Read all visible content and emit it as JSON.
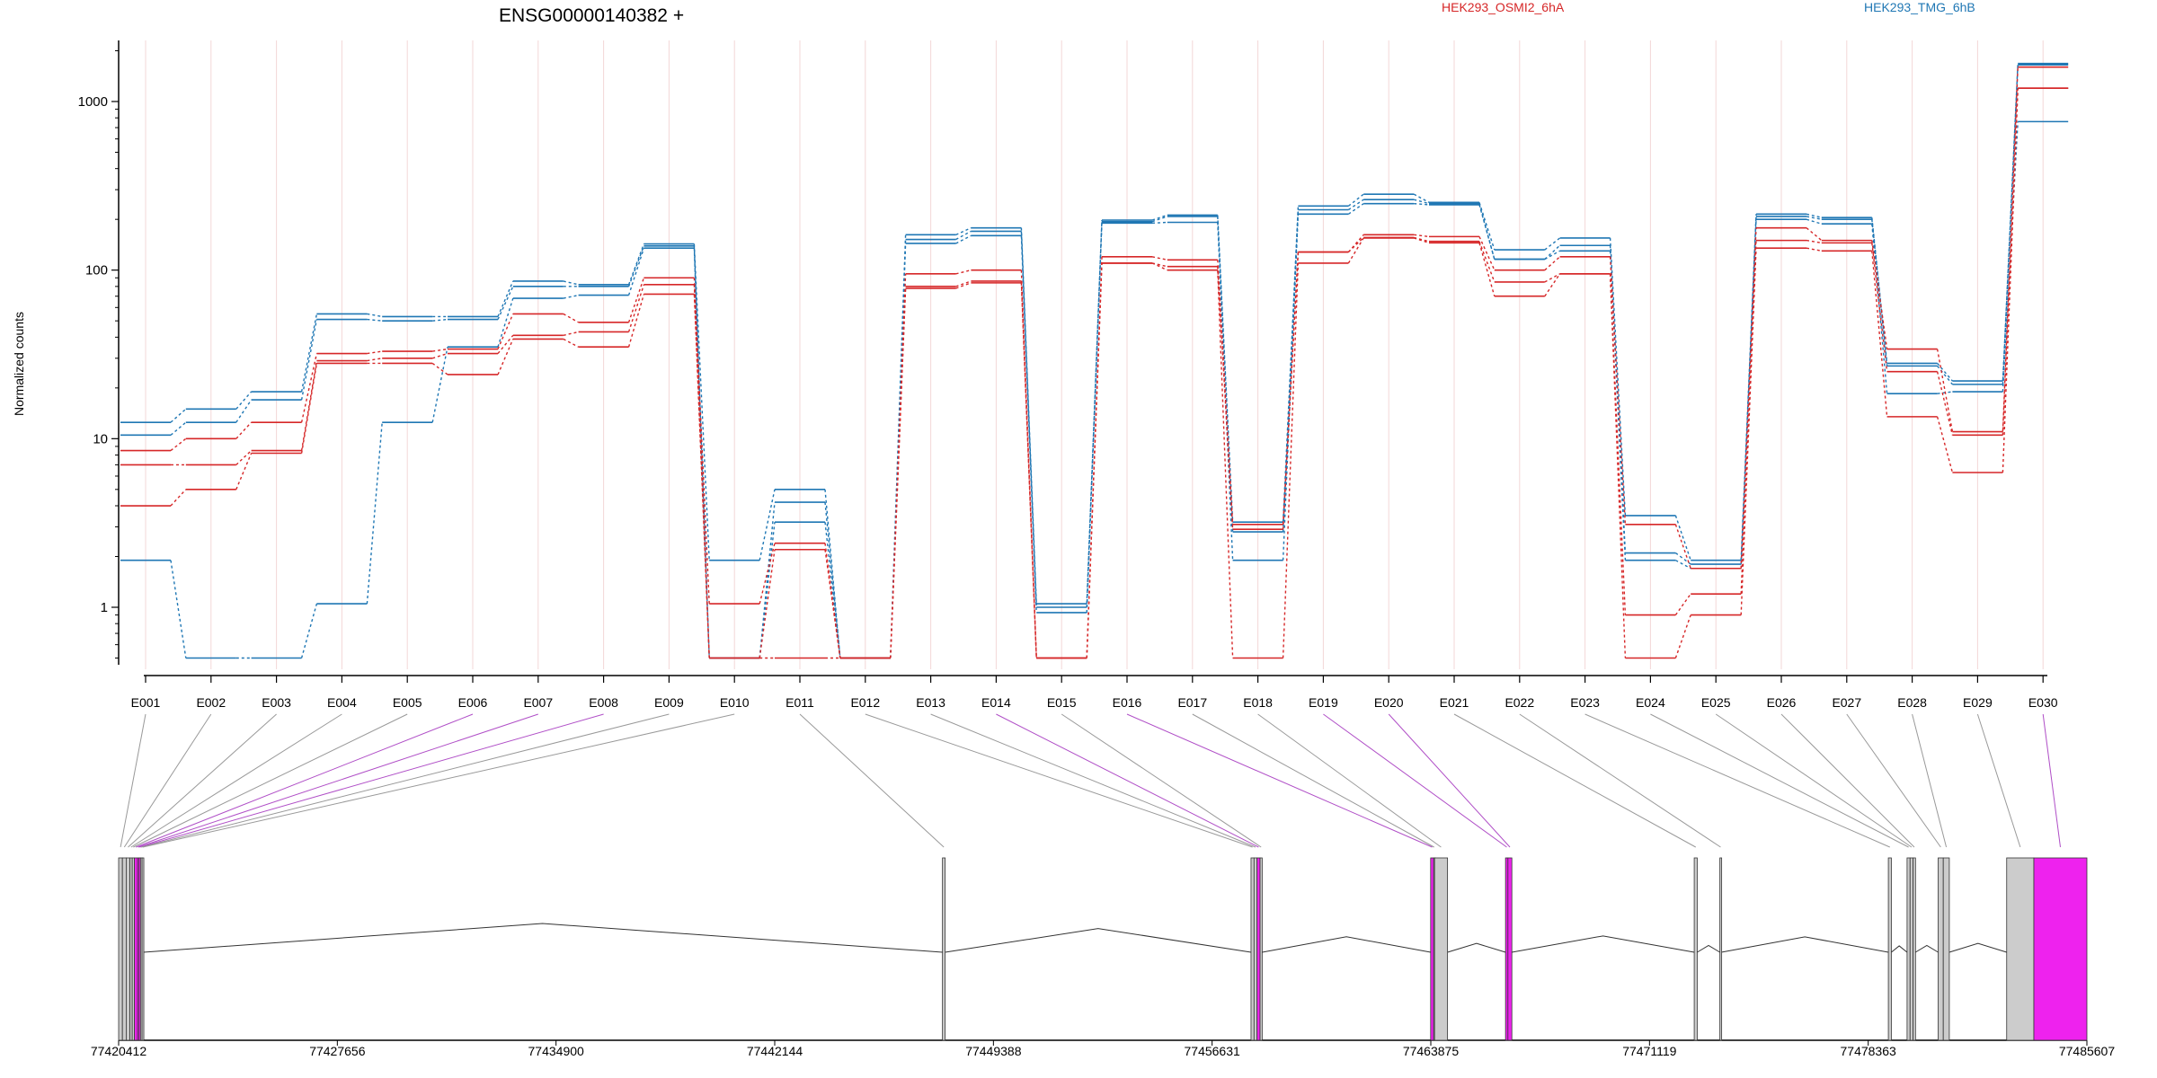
{
  "chart_data": {
    "type": "line",
    "title": "ENSG00000140382 +",
    "ylabel": "Normalized counts",
    "xlabel": "",
    "y_scale": "log",
    "ylim": [
      0.4,
      2200
    ],
    "y_ticks": [
      1,
      10,
      100,
      1000
    ],
    "y_tick_labels": [
      "1",
      "10",
      "100",
      "1000"
    ],
    "grid": "vertical lines at exons",
    "legend": [
      {
        "label": "HEK293_OSMI2_6hA",
        "color": "#d62728"
      },
      {
        "label": "HEK293_TMG_6hB",
        "color": "#1f77b4"
      }
    ],
    "exons": [
      "E001",
      "E002",
      "E003",
      "E004",
      "E005",
      "E006",
      "E007",
      "E008",
      "E009",
      "E010",
      "E011",
      "E012",
      "E013",
      "E014",
      "E015",
      "E016",
      "E017",
      "E018",
      "E019",
      "E020",
      "E021",
      "E022",
      "E023",
      "E024",
      "E025",
      "E026",
      "E027",
      "E028",
      "E029",
      "E030"
    ],
    "series": [
      {
        "group": "HEK293_TMG_6hB",
        "color": "#1f77b4",
        "values": [
          12.5,
          15,
          19,
          55,
          53,
          53,
          86,
          82,
          143,
          1.9,
          5,
          0.5,
          162,
          178,
          1.05,
          198,
          212,
          3.2,
          240,
          282,
          252,
          132,
          155,
          3.5,
          1.9,
          215,
          205,
          28,
          22,
          1680
        ]
      },
      {
        "group": "HEK293_TMG_6hB",
        "color": "#1f77b4",
        "values": [
          10.5,
          12.5,
          17,
          51,
          50,
          51,
          80,
          80,
          139,
          0.5,
          4.2,
          0.5,
          152,
          170,
          1.0,
          194,
          208,
          2.8,
          228,
          262,
          248,
          116,
          140,
          2.1,
          1.8,
          208,
          200,
          27,
          21,
          1650
        ]
      },
      {
        "group": "HEK293_TMG_6hB",
        "color": "#1f77b4",
        "values": [
          1.9,
          0.5,
          0.5,
          1.05,
          12.5,
          35,
          68,
          71,
          135,
          0.5,
          3.2,
          0.5,
          144,
          160,
          0.93,
          190,
          192,
          1.9,
          215,
          248,
          244,
          116,
          130,
          1.9,
          1.7,
          200,
          188,
          18.5,
          19,
          760
        ]
      },
      {
        "group": "HEK293_OSMI2_6hA",
        "color": "#d62728",
        "values": [
          8.5,
          10,
          12.5,
          32,
          33,
          34,
          55,
          49,
          90,
          1.05,
          2.4,
          0.5,
          95,
          100,
          0.5,
          120,
          115,
          3.1,
          128,
          162,
          158,
          100,
          120,
          3.1,
          1.7,
          178,
          150,
          34,
          11,
          1600
        ]
      },
      {
        "group": "HEK293_OSMI2_6hA",
        "color": "#d62728",
        "values": [
          7,
          7,
          8.5,
          29,
          30,
          32,
          41,
          43,
          82,
          0.5,
          2.2,
          0.5,
          80,
          86,
          0.5,
          110,
          105,
          2.9,
          128,
          156,
          148,
          85,
          95,
          0.9,
          1.2,
          150,
          145,
          25,
          10.5,
          1200
        ]
      },
      {
        "group": "HEK293_OSMI2_6hA",
        "color": "#d62728",
        "values": [
          4,
          5,
          8.2,
          28,
          28,
          24,
          39,
          35,
          72,
          0.5,
          0.5,
          0.5,
          78,
          84,
          0.5,
          110,
          100,
          0.5,
          110,
          155,
          145,
          70,
          95,
          0.5,
          0.9,
          135,
          130,
          13.5,
          6.3,
          1200
        ]
      }
    ],
    "gene_model": {
      "coordinate_ticks": [
        "77420412",
        "77427656",
        "77434900",
        "77442144",
        "77449388",
        "77456631",
        "77463875",
        "77471119",
        "77478363",
        "77485607"
      ],
      "coordinate_tick_values": [
        77420412,
        77427656,
        77434900,
        77442144,
        77449388,
        77456631,
        77463875,
        77471119,
        77478363,
        77485607
      ],
      "exons": [
        {
          "id": "E001",
          "start": 77420412,
          "end": 77420537,
          "highlight": false
        },
        {
          "id": "E002",
          "start": 77420537,
          "end": 77420662,
          "highlight": false
        },
        {
          "id": "E003",
          "start": 77420662,
          "end": 77420787,
          "highlight": false
        },
        {
          "id": "E004",
          "start": 77420787,
          "end": 77420862,
          "highlight": false
        },
        {
          "id": "E005",
          "start": 77420862,
          "end": 77420937,
          "highlight": false
        },
        {
          "id": "E006",
          "start": 77420937,
          "end": 77421037,
          "highlight": true
        },
        {
          "id": "E007",
          "start": 77421037,
          "end": 77421087,
          "highlight": true
        },
        {
          "id": "E008",
          "start": 77421087,
          "end": 77421137,
          "highlight": true
        },
        {
          "id": "E009",
          "start": 77421137,
          "end": 77421187,
          "highlight": false
        },
        {
          "id": "E010",
          "start": 77421187,
          "end": 77421237,
          "highlight": false
        },
        {
          "id": "E011",
          "start": 77447700,
          "end": 77447790,
          "highlight": false
        },
        {
          "id": "E012",
          "start": 77457920,
          "end": 77458020,
          "highlight": false
        },
        {
          "id": "E013",
          "start": 77458020,
          "end": 77458120,
          "highlight": false
        },
        {
          "id": "E014",
          "start": 77458120,
          "end": 77458220,
          "highlight": true
        },
        {
          "id": "E015",
          "start": 77458220,
          "end": 77458290,
          "highlight": false
        },
        {
          "id": "E016",
          "start": 77463870,
          "end": 77463970,
          "highlight": true
        },
        {
          "id": "E017",
          "start": 77463970,
          "end": 77464000,
          "highlight": false
        },
        {
          "id": "E018",
          "start": 77464000,
          "end": 77464430,
          "highlight": false
        },
        {
          "id": "E019",
          "start": 77466350,
          "end": 77466430,
          "highlight": true
        },
        {
          "id": "E020",
          "start": 77466430,
          "end": 77466560,
          "highlight": true
        },
        {
          "id": "E021",
          "start": 77472600,
          "end": 77472700,
          "highlight": false
        },
        {
          "id": "E022",
          "start": 77473450,
          "end": 77473500,
          "highlight": false
        },
        {
          "id": "E023",
          "start": 77479030,
          "end": 77479130,
          "highlight": false
        },
        {
          "id": "E024",
          "start": 77479650,
          "end": 77479750,
          "highlight": false
        },
        {
          "id": "E025",
          "start": 77479750,
          "end": 77479850,
          "highlight": false
        },
        {
          "id": "E026",
          "start": 77479850,
          "end": 77479930,
          "highlight": false
        },
        {
          "id": "E027",
          "start": 77480680,
          "end": 77480850,
          "highlight": false
        },
        {
          "id": "E028",
          "start": 77480850,
          "end": 77481050,
          "highlight": false
        },
        {
          "id": "E029",
          "start": 77482950,
          "end": 77483850,
          "highlight": false
        },
        {
          "id": "E030",
          "start": 77483850,
          "end": 77485607,
          "highlight": true
        }
      ],
      "intron_connections": [
        {
          "from": 77421237,
          "to": 77447700,
          "peak": 77434450
        },
        {
          "from": 77447790,
          "to": 77457920,
          "peak": 77452855
        },
        {
          "from": 77458290,
          "to": 77463870,
          "peak": 77461080
        },
        {
          "from": 77464430,
          "to": 77466350,
          "peak": 77465390
        },
        {
          "from": 77466560,
          "to": 77472600,
          "peak": 77469580
        },
        {
          "from": 77472700,
          "to": 77473450,
          "peak": 77473075
        },
        {
          "from": 77473500,
          "to": 77479030,
          "peak": 77476265
        },
        {
          "from": 77479130,
          "to": 77479650,
          "peak": 77479390
        },
        {
          "from": 77479930,
          "to": 77480680,
          "peak": 77480305
        },
        {
          "from": 77481050,
          "to": 77482950,
          "peak": 77482000
        }
      ],
      "colors": {
        "exon": "#cccccc",
        "highlight": "#ee22ee",
        "link": "#999999",
        "link_highlight": "#b04fc7"
      }
    }
  }
}
